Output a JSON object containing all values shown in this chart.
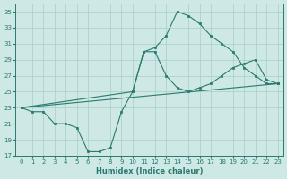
{
  "xlabel": "Humidex (Indice chaleur)",
  "xlim": [
    -0.5,
    23.5
  ],
  "ylim": [
    17,
    36
  ],
  "yticks": [
    17,
    19,
    21,
    23,
    25,
    27,
    29,
    31,
    33,
    35
  ],
  "xticks": [
    0,
    1,
    2,
    3,
    4,
    5,
    6,
    7,
    8,
    9,
    10,
    11,
    12,
    13,
    14,
    15,
    16,
    17,
    18,
    19,
    20,
    21,
    22,
    23
  ],
  "bg_color": "#cde8e5",
  "line_color": "#2a7a6f",
  "grid_color": "#a8ceca",
  "line1_zigzag": {
    "x": [
      0,
      1,
      2,
      3,
      4,
      5,
      6,
      7,
      8,
      9,
      10,
      11,
      12,
      13,
      14,
      15,
      16,
      17,
      18,
      19,
      20,
      21,
      22,
      23
    ],
    "y": [
      23,
      22.5,
      22.5,
      21,
      21,
      20.5,
      17.5,
      17.5,
      18,
      22.5,
      25,
      30,
      30,
      27,
      25.5,
      25,
      25.5,
      26,
      27,
      28,
      28.5,
      29,
      26.5,
      26
    ]
  },
  "line2_peak": {
    "x": [
      0,
      10,
      11,
      12,
      13,
      14,
      15,
      16,
      17,
      18,
      19,
      20,
      21,
      22,
      23
    ],
    "y": [
      23,
      25,
      30,
      30.5,
      32,
      35,
      34.5,
      33.5,
      32,
      31,
      30,
      28,
      27,
      26,
      26
    ]
  },
  "line3_straight": {
    "x": [
      0,
      23
    ],
    "y": [
      23,
      26
    ]
  }
}
